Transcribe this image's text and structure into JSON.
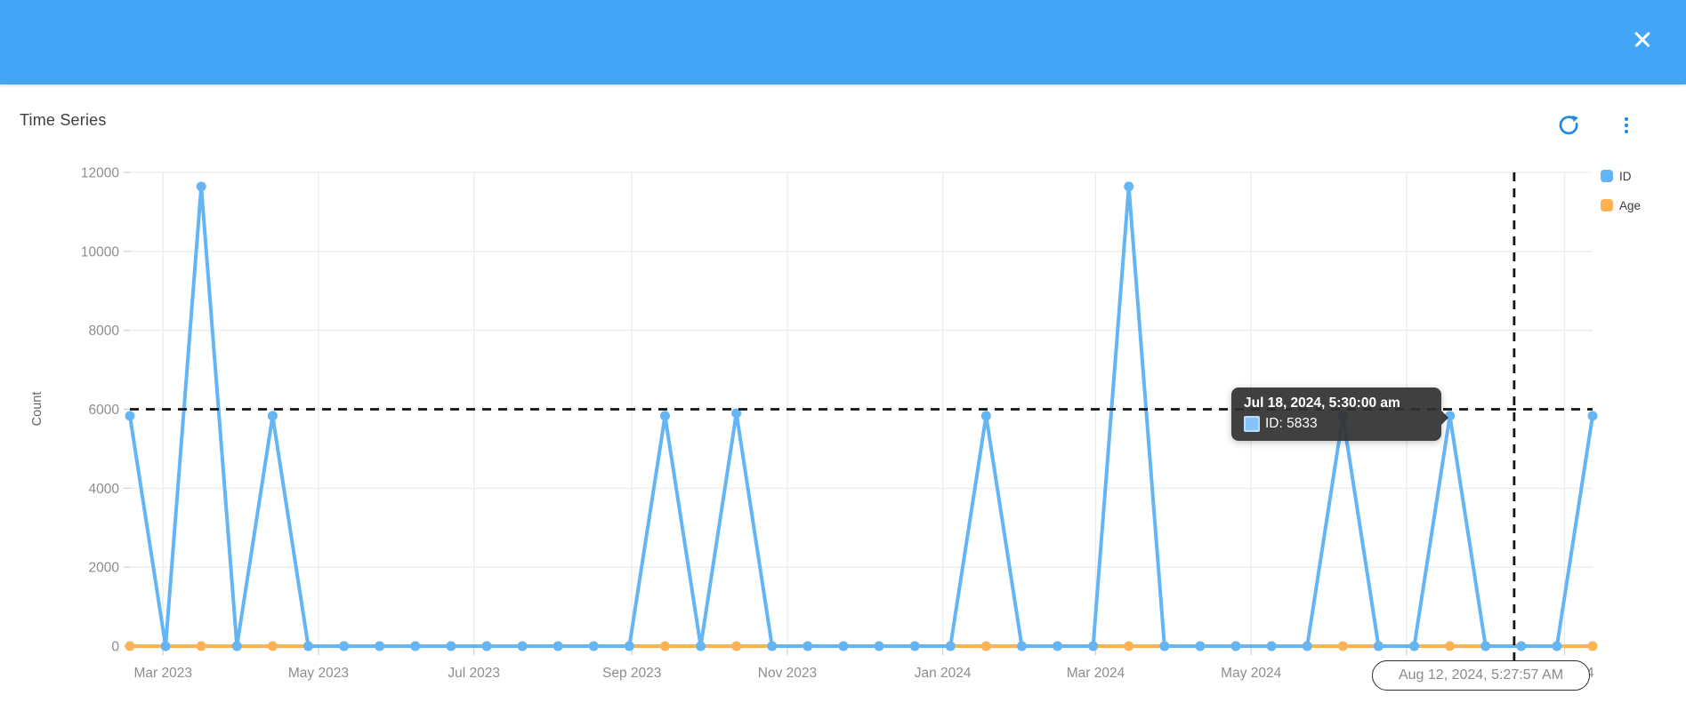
{
  "header": {
    "close_icon": "x-close"
  },
  "card": {
    "title": "Time Series"
  },
  "toolbar": {
    "refresh_icon": "refresh-circular-arrow",
    "menu_icon": "kebab-vertical-dots",
    "icon_color": "#1E88E5"
  },
  "legend": {
    "position": "top-right",
    "items": [
      {
        "label": "ID",
        "color": "#64B5F6"
      },
      {
        "label": "Age",
        "color": "#FFB253"
      }
    ]
  },
  "tooltip": {
    "title": "Jul 18, 2024, 5:30:00 am",
    "row_label": "ID: 5833",
    "series": "ID",
    "value": 5833,
    "swatch_color": "#85c4f8"
  },
  "time_badge": {
    "text": "Aug 12, 2024, 5:27:57 AM"
  },
  "chart_data": {
    "type": "line",
    "title": "Time Series",
    "xlabel": "",
    "ylabel": "Count",
    "ylim": [
      0,
      12000
    ],
    "grid": true,
    "legend_position": "right",
    "y_ticks": [
      0,
      2000,
      4000,
      6000,
      8000,
      10000,
      12000
    ],
    "x_ticks": [
      {
        "date": "2023-03-01",
        "label": "Mar 2023"
      },
      {
        "date": "2023-05-01",
        "label": "May 2023"
      },
      {
        "date": "2023-07-01",
        "label": "Jul 2023"
      },
      {
        "date": "2023-09-01",
        "label": "Sep 2023"
      },
      {
        "date": "2023-11-01",
        "label": "Nov 2023"
      },
      {
        "date": "2024-01-01",
        "label": "Jan 2024"
      },
      {
        "date": "2024-03-01",
        "label": "Mar 2024"
      },
      {
        "date": "2024-05-01",
        "label": "May 2024"
      },
      {
        "date": "2024-07-01",
        "label": "Jul 2024"
      },
      {
        "date": "2024-09-01",
        "label": "Sep 2024"
      }
    ],
    "x_dates": [
      "2023-02-16",
      "2023-03-02",
      "2023-03-16",
      "2023-03-30",
      "2023-04-13",
      "2023-04-27",
      "2023-05-11",
      "2023-05-25",
      "2023-06-08",
      "2023-06-22",
      "2023-07-06",
      "2023-07-20",
      "2023-08-03",
      "2023-08-17",
      "2023-08-31",
      "2023-09-14",
      "2023-09-28",
      "2023-10-12",
      "2023-10-26",
      "2023-11-09",
      "2023-11-23",
      "2023-12-07",
      "2023-12-21",
      "2024-01-04",
      "2024-01-18",
      "2024-02-01",
      "2024-02-15",
      "2024-02-29",
      "2024-03-14",
      "2024-03-28",
      "2024-04-11",
      "2024-04-25",
      "2024-05-09",
      "2024-05-23",
      "2024-06-06",
      "2024-06-20",
      "2024-07-04",
      "2024-07-18",
      "2024-08-01",
      "2024-08-15",
      "2024-08-29",
      "2024-09-12"
    ],
    "series": [
      {
        "name": "ID",
        "color": "#64B5F6",
        "values": [
          5833,
          0,
          11642,
          0,
          5833,
          0,
          0,
          0,
          0,
          0,
          0,
          0,
          0,
          0,
          0,
          5833,
          0,
          5900,
          0,
          0,
          0,
          0,
          0,
          0,
          5833,
          0,
          0,
          0,
          11642,
          0,
          0,
          0,
          0,
          0,
          5833,
          0,
          0,
          5833,
          0,
          0,
          0,
          5833
        ]
      },
      {
        "name": "Age",
        "color": "#FFB253",
        "values": [
          0,
          0,
          0,
          0,
          0,
          0,
          0,
          0,
          0,
          0,
          0,
          0,
          0,
          0,
          0,
          0,
          0,
          0,
          0,
          0,
          0,
          0,
          0,
          0,
          0,
          0,
          0,
          0,
          0,
          0,
          0,
          0,
          0,
          0,
          0,
          0,
          0,
          0,
          0,
          0,
          0,
          0
        ]
      }
    ],
    "annotations": {
      "threshold_value": 6000,
      "now_marker": {
        "date": "2024-08-12T05:27:57",
        "label": "Aug 12, 2024, 5:27:57 AM"
      }
    }
  }
}
